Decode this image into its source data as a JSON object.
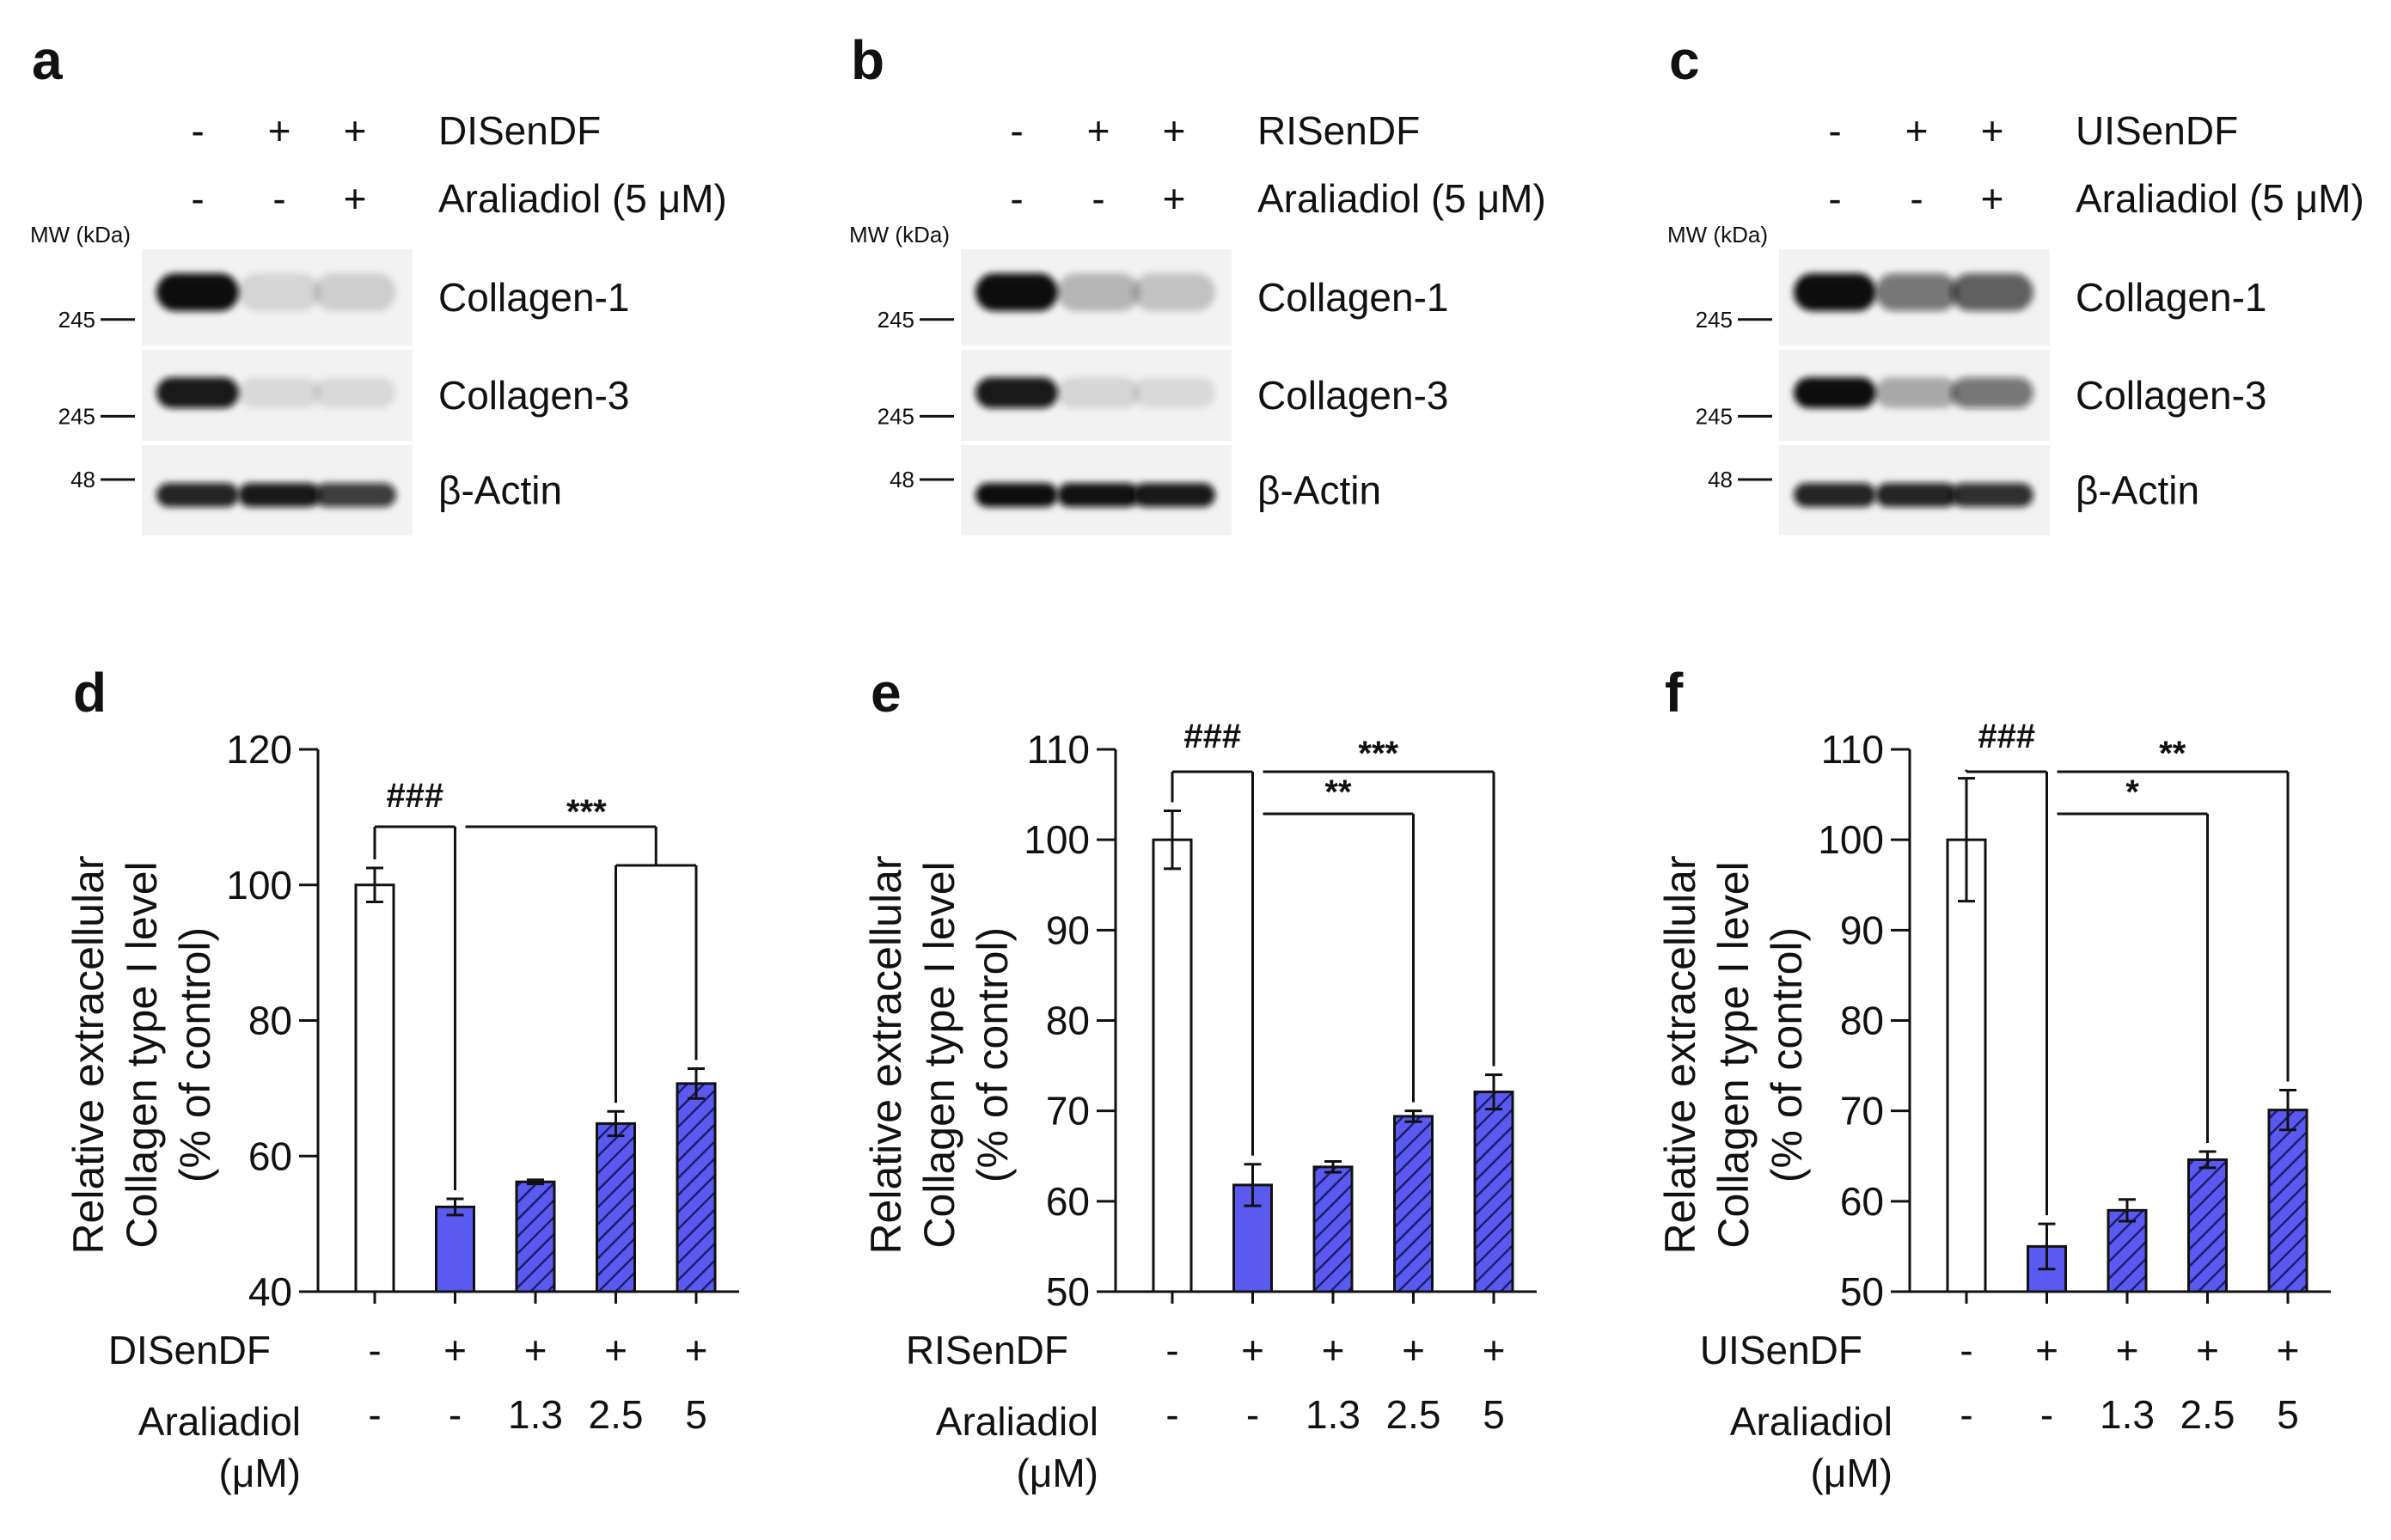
{
  "blots": [
    {
      "panel": "a",
      "treatment_label": "DISenDF",
      "araliadiol_label": "Araliadiol (5 μM)",
      "treatment_signs": [
        "-",
        "+",
        "+"
      ],
      "araliadiol_signs": [
        "-",
        "-",
        "+"
      ],
      "mw_header": "MW (kDa)",
      "rows": [
        {
          "name": "Collagen-1",
          "mw": "245",
          "lanes": [
            1.0,
            0.12,
            0.15
          ]
        },
        {
          "name": "Collagen-3",
          "mw": "245",
          "lanes": [
            0.95,
            0.1,
            0.1
          ]
        },
        {
          "name": "β-Actin",
          "mw": "48",
          "lanes": [
            0.9,
            0.95,
            0.8
          ]
        }
      ]
    },
    {
      "panel": "b",
      "treatment_label": "RISenDF",
      "araliadiol_label": "Araliadiol (5 μM)",
      "treatment_signs": [
        "-",
        "+",
        "+"
      ],
      "araliadiol_signs": [
        "-",
        "-",
        "+"
      ],
      "mw_header": "MW (kDa)",
      "rows": [
        {
          "name": "Collagen-1",
          "mw": "245",
          "lanes": [
            1.0,
            0.25,
            0.2
          ]
        },
        {
          "name": "Collagen-3",
          "mw": "245",
          "lanes": [
            0.95,
            0.12,
            0.1
          ]
        },
        {
          "name": "β-Actin",
          "mw": "48",
          "lanes": [
            1.0,
            0.98,
            0.95
          ]
        }
      ]
    },
    {
      "panel": "c",
      "treatment_label": "UISenDF",
      "araliadiol_label": "Araliadiol (5 μM)",
      "treatment_signs": [
        "-",
        "+",
        "+"
      ],
      "araliadiol_signs": [
        "-",
        "-",
        "+"
      ],
      "mw_header": "MW (kDa)",
      "rows": [
        {
          "name": "Collagen-1",
          "mw": "245",
          "lanes": [
            1.0,
            0.55,
            0.65
          ]
        },
        {
          "name": "Collagen-3",
          "mw": "245",
          "lanes": [
            1.0,
            0.3,
            0.55
          ]
        },
        {
          "name": "β-Actin",
          "mw": "48",
          "lanes": [
            0.9,
            0.9,
            0.85
          ]
        }
      ]
    }
  ],
  "chart_data": [
    {
      "panel": "d",
      "type": "bar",
      "ylabel_line1": "Relative extracellular",
      "ylabel_line2": "Collagen type I  level",
      "ylabel_line3": "(% of control)",
      "ylim": [
        40,
        120
      ],
      "yticks": [
        40,
        60,
        80,
        100,
        120
      ],
      "values": [
        100,
        52.5,
        56.2,
        64.8,
        70.7
      ],
      "errors": [
        2.5,
        1.2,
        0.3,
        1.8,
        2.2
      ],
      "treatment_label": "DISenDF",
      "treatment_signs": [
        "-",
        "+",
        "+",
        "+",
        "+"
      ],
      "araliadiol_label_line1": "Araliadiol",
      "araliadiol_label_line2": "(μM)",
      "araliadiol_values": [
        "-",
        "-",
        "1.3",
        "2.5",
        "5"
      ],
      "fill_colors": [
        "#ffffff",
        "#5a5af0",
        "#5a5af0",
        "#5a5af0",
        "#5a5af0"
      ],
      "hatched": [
        false,
        false,
        true,
        true,
        true
      ],
      "significance": [
        {
          "label": "###",
          "from": 0,
          "to": 1
        },
        {
          "label": "***",
          "from": 1,
          "to": [
            3,
            4
          ]
        }
      ]
    },
    {
      "panel": "e",
      "type": "bar",
      "ylabel_line1": "Relative extracellular",
      "ylabel_line2": "Collagen type I  level",
      "ylabel_line3": "(% of control)",
      "ylim": [
        50,
        110
      ],
      "yticks": [
        50,
        60,
        70,
        80,
        90,
        100,
        110
      ],
      "values": [
        100,
        61.8,
        63.8,
        69.4,
        72.1
      ],
      "errors": [
        3.2,
        2.3,
        0.6,
        0.6,
        1.9
      ],
      "treatment_label": "RISenDF",
      "treatment_signs": [
        "-",
        "+",
        "+",
        "+",
        "+"
      ],
      "araliadiol_label_line1": "Araliadiol",
      "araliadiol_label_line2": "(μM)",
      "araliadiol_values": [
        "-",
        "-",
        "1.3",
        "2.5",
        "5"
      ],
      "fill_colors": [
        "#ffffff",
        "#5a5af0",
        "#5a5af0",
        "#5a5af0",
        "#5a5af0"
      ],
      "hatched": [
        false,
        false,
        true,
        true,
        true
      ],
      "significance": [
        {
          "label": "###",
          "from": 0,
          "to": 1
        },
        {
          "label": "**",
          "from": 1,
          "to": 3
        },
        {
          "label": "***",
          "from": 1,
          "to": 4
        }
      ]
    },
    {
      "panel": "f",
      "type": "bar",
      "ylabel_line1": "Relative extracellular",
      "ylabel_line2": "Collagen type I  level",
      "ylabel_line3": "(% of control)",
      "ylim": [
        50,
        110
      ],
      "yticks": [
        50,
        60,
        70,
        80,
        90,
        100,
        110
      ],
      "values": [
        100,
        55.0,
        59.0,
        64.6,
        70.1
      ],
      "errors": [
        6.8,
        2.5,
        1.2,
        0.9,
        2.2
      ],
      "treatment_label": "UISenDF",
      "treatment_signs": [
        "-",
        "+",
        "+",
        "+",
        "+"
      ],
      "araliadiol_label_line1": "Araliadiol",
      "araliadiol_label_line2": "(μM)",
      "araliadiol_values": [
        "-",
        "-",
        "1.3",
        "2.5",
        "5"
      ],
      "fill_colors": [
        "#ffffff",
        "#5a5af0",
        "#5a5af0",
        "#5a5af0",
        "#5a5af0"
      ],
      "hatched": [
        false,
        false,
        true,
        true,
        true
      ],
      "significance": [
        {
          "label": "###",
          "from": 0,
          "to": 1
        },
        {
          "label": "*",
          "from": 1,
          "to": 3
        },
        {
          "label": "**",
          "from": 1,
          "to": 4
        }
      ]
    }
  ]
}
